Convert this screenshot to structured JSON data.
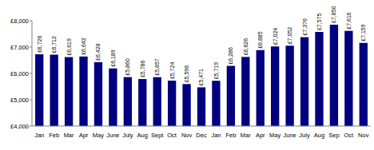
{
  "chart_data": {
    "type": "bar",
    "categories": [
      "Jan",
      "Feb",
      "Mar",
      "Apr",
      "May",
      "June",
      "July",
      "Aug",
      "Sept",
      "Oct",
      "Nov",
      "Dec",
      "Jan",
      "Feb",
      "Mar",
      "Apr",
      "May",
      "June",
      "July",
      "Aug",
      "Sep",
      "Oct",
      "Nov"
    ],
    "values": [
      6726,
      6712,
      6619,
      6642,
      6428,
      6189,
      5860,
      5786,
      5857,
      5724,
      5596,
      5471,
      5719,
      6286,
      6626,
      6885,
      7024,
      7052,
      7376,
      7575,
      7850,
      7616,
      7159
    ],
    "value_labels": [
      "£6,726",
      "£6,712",
      "£6,619",
      "£6,642",
      "£6,428",
      "£6,189",
      "£5,860",
      "£5,786",
      "£5,857",
      "£5,724",
      "£5,596",
      "£5,471",
      "£5,719",
      "£6,286",
      "£6,626",
      "£6,885",
      "£7,024",
      "£7,052",
      "£7,376",
      "£7,575",
      "£7,850",
      "£7,616",
      "£7,159"
    ],
    "color": "#000080",
    "ylim": [
      4000,
      8000
    ],
    "yticks": [
      {
        "value": 4000,
        "label": "£4,000"
      },
      {
        "value": 5000,
        "label": "£5,000"
      },
      {
        "value": 6000,
        "label": "£6,000"
      },
      {
        "value": 7000,
        "label": "£7,000"
      },
      {
        "value": 8000,
        "label": "£8,000"
      }
    ],
    "grid": false,
    "data_labels": true
  }
}
